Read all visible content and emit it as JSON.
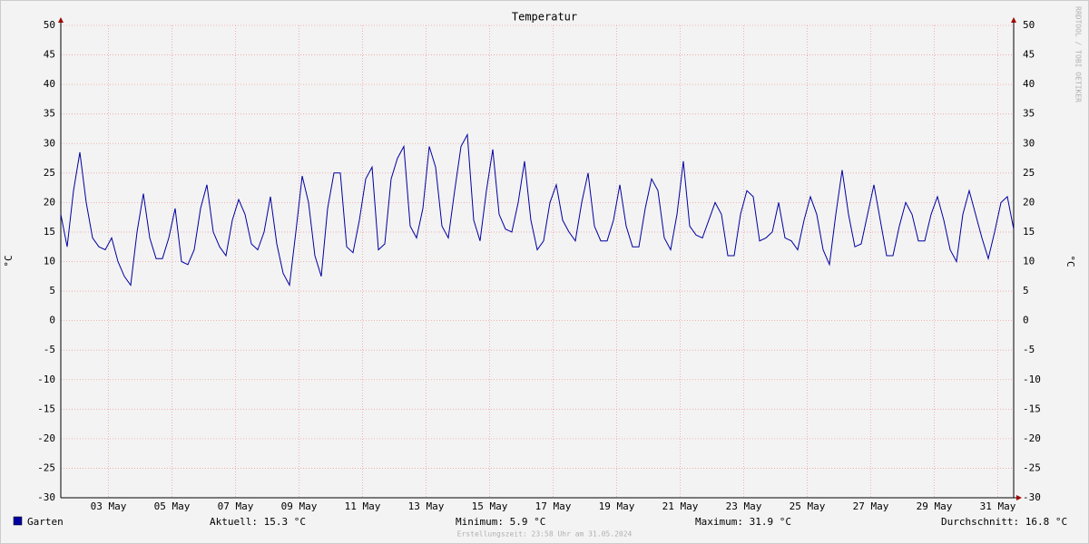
{
  "chart_data": {
    "type": "line",
    "title": "Temperatur",
    "y_label": "°C",
    "watermark": "RRDTOOL / TOBI OETIKER",
    "footer": "Erstellungszeit: 23:58 Uhr am 31.05.2024",
    "x": [
      2,
      2.2,
      2.4,
      2.6,
      2.8,
      3,
      3.2,
      3.4,
      3.6,
      3.8,
      4,
      4.2,
      4.4,
      4.6,
      4.8,
      5,
      5.2,
      5.4,
      5.6,
      5.8,
      6,
      6.2,
      6.4,
      6.6,
      6.8,
      7,
      7.2,
      7.4,
      7.6,
      7.8,
      8,
      8.2,
      8.4,
      8.6,
      8.8,
      9,
      9.2,
      9.4,
      9.6,
      9.8,
      10,
      10.2,
      10.4,
      10.6,
      10.8,
      11,
      11.2,
      11.4,
      11.6,
      11.8,
      12,
      12.2,
      12.4,
      12.6,
      12.8,
      13,
      13.2,
      13.4,
      13.6,
      13.8,
      14,
      14.2,
      14.4,
      14.6,
      14.8,
      15,
      15.2,
      15.4,
      15.6,
      15.8,
      16,
      16.2,
      16.4,
      16.6,
      16.8,
      17,
      17.2,
      17.4,
      17.6,
      17.8,
      18,
      18.2,
      18.4,
      18.6,
      18.8,
      19,
      19.2,
      19.4,
      19.6,
      19.8,
      20,
      20.2,
      20.4,
      20.6,
      20.8,
      21,
      21.2,
      21.4,
      21.6,
      21.8,
      22,
      22.2,
      22.4,
      22.6,
      22.8,
      23,
      23.2,
      23.4,
      23.6,
      23.8,
      24,
      24.2,
      24.4,
      24.6,
      24.8,
      25,
      25.2,
      25.4,
      25.6,
      25.8,
      26,
      26.2,
      26.4,
      26.6,
      26.8,
      27,
      27.2,
      27.4,
      27.6,
      27.8,
      28,
      28.2,
      28.4,
      28.6,
      28.8,
      29,
      29.2,
      29.4,
      29.6,
      29.8,
      30,
      30.2,
      30.4,
      30.6,
      30.8,
      31,
      31.2,
      31.4,
      31.6,
      31.8,
      32
    ],
    "series": [
      {
        "name": "Garten",
        "color": "#0000a0",
        "values": [
          18,
          12.5,
          22,
          28.5,
          20,
          14,
          12.5,
          12,
          14,
          10,
          7.5,
          6,
          15,
          21.5,
          14,
          10.5,
          10.5,
          14,
          19,
          10,
          9.5,
          12,
          19,
          23,
          15,
          12.5,
          11,
          17,
          20.5,
          18,
          13,
          12,
          15,
          21,
          13,
          8,
          6,
          15,
          24.5,
          20,
          11,
          7.5,
          19,
          25,
          25,
          12.5,
          11.5,
          17,
          24,
          26,
          12,
          13,
          24,
          27.5,
          29.5,
          16,
          14,
          19,
          29.5,
          26,
          16,
          14,
          22,
          29.5,
          31.5,
          17,
          13.5,
          22,
          29,
          18,
          15.5,
          15,
          20,
          27,
          17,
          12,
          13.5,
          20,
          23,
          17,
          15,
          13.5,
          20,
          25,
          16,
          13.5,
          13.5,
          17,
          23,
          16,
          12.5,
          12.5,
          19,
          24,
          22,
          14,
          12,
          18,
          27,
          16,
          14.5,
          14,
          17,
          20,
          18,
          11,
          11,
          18,
          22,
          21,
          13.5,
          14,
          15,
          20,
          14,
          13.5,
          12,
          17,
          21,
          18,
          12,
          9.5,
          18,
          25.5,
          18,
          12.5,
          13,
          18,
          23,
          17,
          11,
          11,
          16,
          20,
          18,
          13.5,
          13.5,
          18,
          21,
          17,
          12,
          10,
          18,
          22,
          18,
          14,
          10.5,
          15,
          20,
          21,
          15.5
        ]
      }
    ],
    "xlim": [
      2,
      32
    ],
    "ylim": [
      -30,
      50
    ],
    "xticks": [
      {
        "value": 3.5,
        "label": "03 May"
      },
      {
        "value": 5.5,
        "label": "05 May"
      },
      {
        "value": 7.5,
        "label": "07 May"
      },
      {
        "value": 9.5,
        "label": "09 May"
      },
      {
        "value": 11.5,
        "label": "11 May"
      },
      {
        "value": 13.5,
        "label": "13 May"
      },
      {
        "value": 15.5,
        "label": "15 May"
      },
      {
        "value": 17.5,
        "label": "17 May"
      },
      {
        "value": 19.5,
        "label": "19 May"
      },
      {
        "value": 21.5,
        "label": "21 May"
      },
      {
        "value": 23.5,
        "label": "23 May"
      },
      {
        "value": 25.5,
        "label": "25 May"
      },
      {
        "value": 27.5,
        "label": "27 May"
      },
      {
        "value": 29.5,
        "label": "29 May"
      },
      {
        "value": 31.5,
        "label": "31 May"
      }
    ],
    "yticks": [
      -30,
      -25,
      -20,
      -15,
      -10,
      -5,
      0,
      5,
      10,
      15,
      20,
      25,
      30,
      35,
      40,
      45,
      50
    ],
    "grid": true,
    "stats": [
      "Aktuell: 15.3 °C",
      "Minimum: 5.9 °C",
      "Maximum: 31.9 °C",
      "Durchschnitt: 16.8 °C"
    ]
  }
}
